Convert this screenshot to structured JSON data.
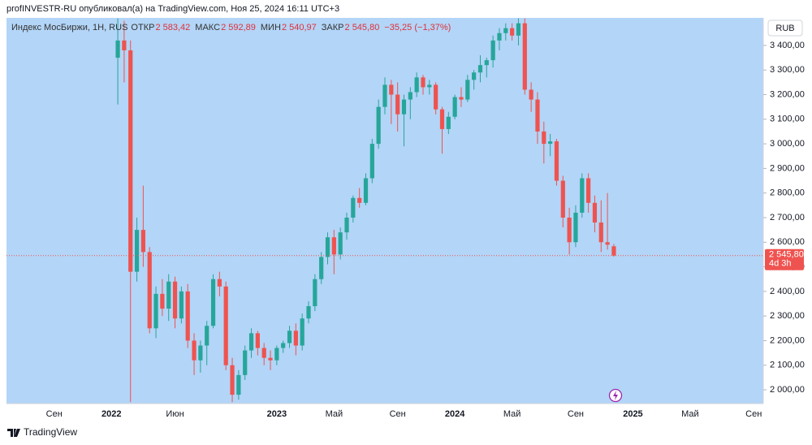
{
  "attribution": "profINVESTR-RU опубликовал(а) на TradingView.com, Ноя 25, 2024 16:11 UTC+3",
  "footer": "TradingView",
  "chart_data": {
    "type": "candlestick",
    "legend": {
      "name": "Индекс МосБиржи, 1H, RUS",
      "open_label": "ОТКР",
      "open": "2 583,42",
      "high_label": "МАКС",
      "high": "2 592,89",
      "low_label": "МИН",
      "low": "2 540,97",
      "close_label": "ЗАКР",
      "close": "2 545,80",
      "change": "−35,25 (−1,37%)"
    },
    "currency": "RUB",
    "up_color": "#26a69a",
    "down_color": "#ef5350",
    "background": "#b3d5f7",
    "last_price": {
      "value": 2545.8,
      "label": "2 545,80"
    },
    "countdown": "4d 3h",
    "ylim": [
      1944,
      3512
    ],
    "yticks": [
      {
        "value": 2000,
        "label": "2 000,00"
      },
      {
        "value": 2100,
        "label": "2 100,00"
      },
      {
        "value": 2200,
        "label": "2 200,00"
      },
      {
        "value": 2300,
        "label": "2 300,00"
      },
      {
        "value": 2400,
        "label": "2 400,00"
      },
      {
        "value": 2500,
        "label": "2 500,00"
      },
      {
        "value": 2600,
        "label": "2 600,00"
      },
      {
        "value": 2700,
        "label": "2 700,00"
      },
      {
        "value": 2800,
        "label": "2 800,00"
      },
      {
        "value": 2900,
        "label": "2 900,00"
      },
      {
        "value": 3000,
        "label": "3 000,00"
      },
      {
        "value": 3100,
        "label": "3 100,00"
      },
      {
        "value": 3200,
        "label": "3 200,00"
      },
      {
        "value": 3300,
        "label": "3 300,00"
      },
      {
        "value": 3400,
        "label": "3 400,00"
      }
    ],
    "categories": [
      null,
      null,
      null,
      null,
      null,
      null,
      null,
      "Сен",
      null,
      null,
      null,
      null,
      null,
      null,
      null,
      null,
      "2022",
      null,
      null,
      null,
      null,
      null,
      null,
      null,
      null,
      null,
      "Июн",
      null,
      null,
      null,
      null,
      null,
      null,
      null,
      null,
      null,
      null,
      null,
      null,
      null,
      null,
      null,
      "2023",
      null,
      null,
      null,
      null,
      null,
      null,
      null,
      null,
      "Май",
      null,
      null,
      null,
      null,
      null,
      null,
      null,
      null,
      null,
      "Сен",
      null,
      null,
      null,
      null,
      null,
      null,
      null,
      null,
      "2024",
      null,
      null,
      null,
      null,
      null,
      null,
      null,
      null,
      "Май",
      null,
      null,
      null,
      null,
      null,
      null,
      null,
      null,
      null,
      "Сен",
      null,
      null,
      null,
      null,
      null,
      null,
      null,
      null,
      "2025",
      null,
      null,
      null,
      null,
      null,
      null,
      null,
      null,
      "Май",
      null,
      null,
      null,
      null,
      null,
      null,
      null,
      null,
      null,
      "Сен",
      null
    ],
    "open": [
      null,
      null,
      null,
      null,
      null,
      null,
      null,
      null,
      null,
      null,
      null,
      null,
      null,
      null,
      null,
      null,
      null,
      3350,
      3420,
      3380,
      2480,
      2650,
      2560,
      2250,
      2390,
      2330,
      2440,
      2290,
      2400,
      2200,
      2120,
      2180,
      2260,
      2450,
      2420,
      2100,
      1980,
      2060,
      2160,
      2230,
      2170,
      2130,
      2120,
      2170,
      2190,
      2240,
      2180,
      2290,
      2340,
      2450,
      2540,
      2620,
      2550,
      2640,
      2700,
      2780,
      2760,
      2860,
      3000,
      3150,
      3240,
      3200,
      3120,
      3180,
      3210,
      3270,
      3230,
      3240,
      3140,
      3060,
      3110,
      3190,
      3180,
      3260,
      3290,
      3320,
      3340,
      3420,
      3450,
      3470,
      3440,
      3490,
      3220,
      3180,
      3050,
      3000,
      3010,
      2850,
      2700,
      2600,
      2720,
      2860,
      2760,
      2680,
      2600,
      2583.42,
      null,
      null,
      null,
      null,
      null,
      null,
      null,
      null,
      null,
      null,
      null,
      null,
      null,
      null,
      null,
      null,
      null,
      null,
      null,
      null,
      null,
      null,
      null
    ],
    "high": [
      null,
      null,
      null,
      null,
      null,
      null,
      null,
      null,
      null,
      null,
      null,
      null,
      null,
      null,
      null,
      null,
      null,
      3510,
      3500,
      3420,
      2700,
      2830,
      2580,
      2420,
      2450,
      2470,
      2460,
      2420,
      2430,
      2230,
      2200,
      2280,
      2470,
      2480,
      2440,
      2130,
      2080,
      2180,
      2250,
      2240,
      2190,
      2160,
      2180,
      2200,
      2260,
      2270,
      2310,
      2360,
      2470,
      2560,
      2640,
      2650,
      2660,
      2720,
      2790,
      2820,
      2880,
      3020,
      3180,
      3270,
      3260,
      3250,
      3200,
      3230,
      3290,
      3280,
      3260,
      3250,
      3150,
      3130,
      3200,
      3230,
      3280,
      3300,
      3360,
      3350,
      3440,
      3470,
      3490,
      3490,
      3510,
      3510,
      3250,
      3210,
      3090,
      3040,
      3020,
      2870,
      2740,
      2750,
      2880,
      2880,
      2790,
      2770,
      2800,
      2592.89,
      null,
      null,
      null,
      null,
      null,
      null,
      null,
      null,
      null,
      null,
      null,
      null,
      null,
      null,
      null,
      null,
      null,
      null,
      null,
      null,
      null,
      null,
      null
    ],
    "low": [
      null,
      null,
      null,
      null,
      null,
      null,
      null,
      null,
      null,
      null,
      null,
      null,
      null,
      null,
      null,
      null,
      null,
      3160,
      3250,
      1950,
      2440,
      2500,
      2230,
      2210,
      2300,
      2280,
      2250,
      2270,
      2170,
      2060,
      2070,
      2100,
      2250,
      2380,
      2080,
      1950,
      1960,
      2040,
      2130,
      2140,
      2100,
      2080,
      2100,
      2150,
      2170,
      2140,
      2160,
      2270,
      2320,
      2430,
      2510,
      2470,
      2530,
      2610,
      2680,
      2740,
      2750,
      2840,
      2980,
      3120,
      3080,
      3050,
      2990,
      3100,
      3190,
      3200,
      3200,
      3120,
      2960,
      3040,
      3100,
      3150,
      3170,
      3220,
      3250,
      3270,
      3310,
      3380,
      3420,
      3420,
      3400,
      3200,
      3130,
      3000,
      2920,
      2950,
      2830,
      2660,
      2550,
      2580,
      2700,
      2720,
      2640,
      2560,
      2570,
      2540.97,
      null,
      null,
      null,
      null,
      null,
      null,
      null,
      null,
      null,
      null,
      null,
      null,
      null,
      null,
      null,
      null,
      null,
      null,
      null,
      null,
      null,
      null,
      null
    ],
    "close": [
      null,
      null,
      null,
      null,
      null,
      null,
      null,
      null,
      null,
      null,
      null,
      null,
      null,
      null,
      null,
      null,
      null,
      3420,
      3380,
      2480,
      2650,
      2560,
      2250,
      2390,
      2330,
      2440,
      2290,
      2400,
      2200,
      2120,
      2180,
      2260,
      2450,
      2420,
      2100,
      1980,
      2060,
      2160,
      2230,
      2170,
      2130,
      2120,
      2170,
      2190,
      2240,
      2180,
      2290,
      2340,
      2450,
      2540,
      2620,
      2550,
      2640,
      2700,
      2780,
      2760,
      2860,
      3000,
      3150,
      3240,
      3200,
      3120,
      3180,
      3210,
      3270,
      3230,
      3240,
      3140,
      3060,
      3110,
      3190,
      3180,
      3260,
      3290,
      3320,
      3340,
      3420,
      3450,
      3470,
      3440,
      3490,
      3220,
      3180,
      3050,
      3000,
      3010,
      2850,
      2700,
      2600,
      2720,
      2860,
      2760,
      2680,
      2600,
      2590,
      2545.8,
      null,
      null,
      null,
      null,
      null,
      null,
      null,
      null,
      null,
      null,
      null,
      null,
      null,
      null,
      null,
      null,
      null,
      null,
      null,
      null,
      null,
      null,
      null
    ]
  }
}
